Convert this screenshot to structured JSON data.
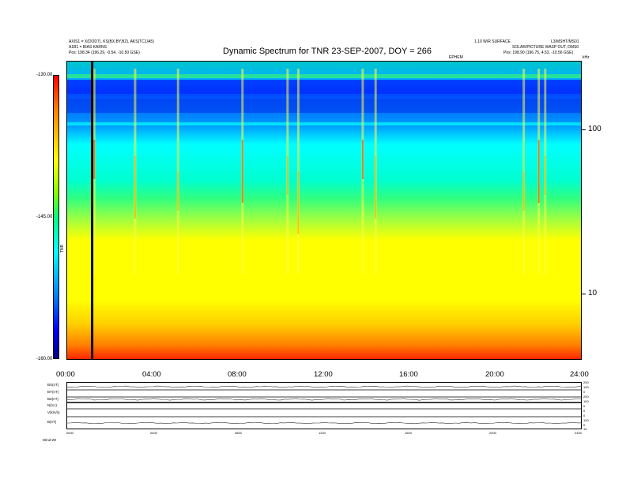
{
  "header": {
    "left_line1": "AXIS1 = X(DOD7), KS(BX,BY,BZ), AKS(TC1/A5)",
    "left_line2": "A1B1 = BIAS KARNS",
    "left_line3": "Pos: 198.34 (196.29, -0.54, -10.50 GSE)",
    "right_line1a": "1.10 W/R SURFACE",
    "right_line1b": "L3/MSHT/MS01",
    "right_line2": "SOLAR/PICTURE WASP OUT, DMS0",
    "right_line3": "Pos: 198.90 (196.75, 4.53, -10.56 GSE)",
    "right_line4": "EPHEM"
  },
  "chart_data": {
    "type": "heatmap",
    "title": "Dynamic Spectrum for TNR 23-SEP-2007, DOY = 266",
    "xlabel": "",
    "ylabel": "kHz",
    "x_ticks": [
      "00:00",
      "04:00",
      "08:00",
      "12:00",
      "16:00",
      "20:00",
      "24:00"
    ],
    "x_range_hours": [
      0,
      24
    ],
    "y_scale": "log",
    "y_range_khz": [
      4,
      245
    ],
    "y_ticks": [
      "100",
      "10"
    ],
    "colorbar": {
      "label": "TNR",
      "ticks": [
        "-130.00",
        "-145.00",
        "-160.00"
      ],
      "range": [
        -160,
        -130
      ],
      "colors": [
        "#000080",
        "#0000ff",
        "#00ffff",
        "#00ff80",
        "#ffff00",
        "#ff8000",
        "#ff0000"
      ]
    },
    "data_gap_hour": 1.2,
    "bursts_hours": [
      1.3,
      3.2,
      5.2,
      8.2,
      10.3,
      10.8,
      13.8,
      14.4,
      21.3,
      22.0,
      22.3
    ],
    "bottom_panels": {
      "labels": [
        "BX(nT)",
        "BY(nT)",
        "BZ(nT)",
        "N(/cc)",
        "V(km/s)",
        "B(nT)"
      ],
      "x_ticks": [
        "0000",
        "0400",
        "0800",
        "1200",
        "1600",
        "2000",
        "2400"
      ],
      "right_ticks": [
        "200",
        "100",
        "0",
        "200",
        "100",
        "0",
        "0",
        "0",
        "100",
        "0",
        "10",
        "0"
      ]
    },
    "footer_label": "Wind WI"
  }
}
